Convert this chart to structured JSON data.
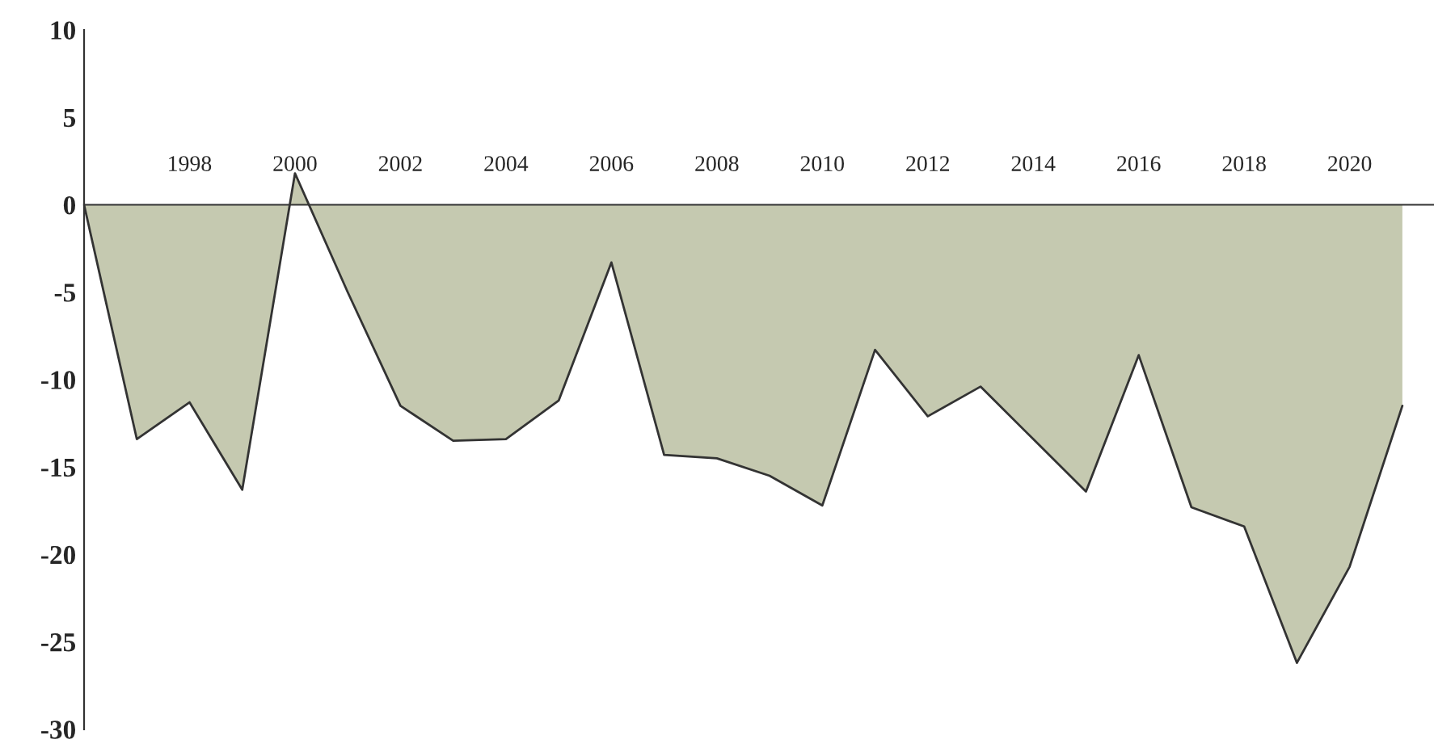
{
  "chart_data": {
    "type": "area",
    "x": [
      1996,
      1997,
      1998,
      1999,
      2000,
      2001,
      2002,
      2003,
      2004,
      2005,
      2006,
      2007,
      2008,
      2009,
      2010,
      2011,
      2012,
      2013,
      2014,
      2015,
      2016,
      2017,
      2018,
      2019,
      2020,
      2021
    ],
    "series": [
      {
        "color": "#c5c9b0",
        "values": [
          0,
          -13.4,
          -11.3,
          -16.3,
          1.8,
          -5,
          -11.5,
          -13.5,
          -13.4,
          -11.2,
          -3.3,
          -14.3,
          -14.5,
          -15.5,
          -17.2,
          -8.3,
          -12.1,
          -10.4,
          -13.4,
          -16.4,
          -8.6,
          -17.3,
          -18.4,
          -26.2,
          -20.7,
          -11.5
        ]
      }
    ],
    "xlim": [
      1996,
      2021.6
    ],
    "xticks": [
      1998,
      2000,
      2002,
      2004,
      2006,
      2008,
      2010,
      2012,
      2014,
      2016,
      2018,
      2020
    ],
    "ylim": [
      -30,
      10
    ],
    "yticks": [
      10,
      5,
      0,
      -5,
      -10,
      -15,
      -20,
      -25,
      -30
    ],
    "grid": false,
    "legend": false
  }
}
